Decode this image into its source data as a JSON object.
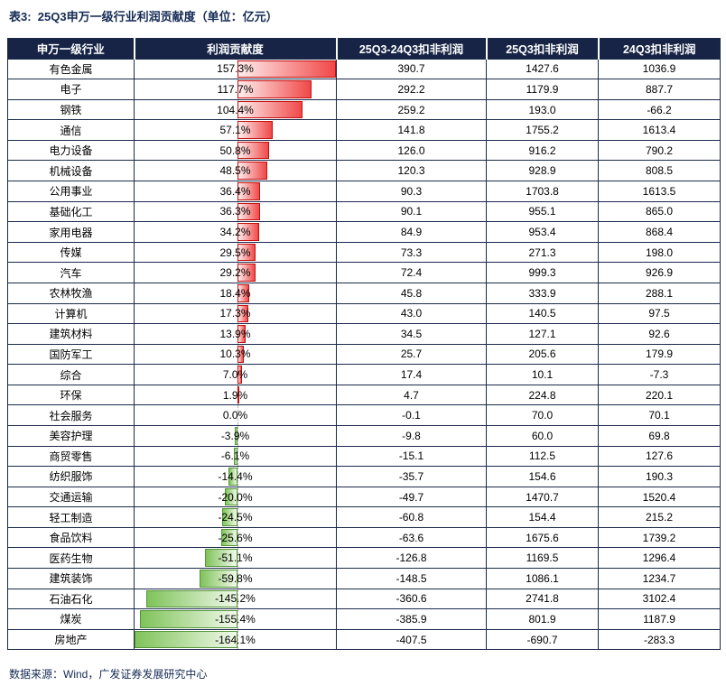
{
  "title": "表3:  25Q3申万一级行业利润贡献度（单位：亿元）",
  "footer": "数据来源：Wind，广发证券发展研究中心",
  "colors": {
    "header_bg": "#172445",
    "grid_line": "#1b2a4a",
    "accent_text": "#142a54",
    "positive_bar": "#f04848",
    "positive_bar_border": "#c40f0f",
    "negative_bar": "#7fc35a",
    "negative_bar_border": "#55953a"
  },
  "chart_data": {
    "type": "table",
    "title": "25Q3申万一级行业利润贡献度（单位：亿元）",
    "columns": [
      "申万一级行业",
      "利润贡献度",
      "25Q3-24Q3扣非利润",
      "25Q3扣非利润",
      "24Q3扣非利润"
    ],
    "bar_column": "利润贡献度",
    "bar_axis": {
      "min": -164.1,
      "max": 157.3,
      "unit": "%"
    },
    "legend": "red bars = positive contribution, green bars = negative contribution",
    "rows": [
      {
        "industry": "有色金属",
        "contribution_pct": 157.3,
        "profit_diff": 390.7,
        "profit_25q3": 1427.6,
        "profit_24q3": 1036.9
      },
      {
        "industry": "电子",
        "contribution_pct": 117.7,
        "profit_diff": 292.2,
        "profit_25q3": 1179.9,
        "profit_24q3": 887.7
      },
      {
        "industry": "钢铁",
        "contribution_pct": 104.4,
        "profit_diff": 259.2,
        "profit_25q3": 193.0,
        "profit_24q3": -66.2
      },
      {
        "industry": "通信",
        "contribution_pct": 57.1,
        "profit_diff": 141.8,
        "profit_25q3": 1755.2,
        "profit_24q3": 1613.4
      },
      {
        "industry": "电力设备",
        "contribution_pct": 50.8,
        "profit_diff": 126.0,
        "profit_25q3": 916.2,
        "profit_24q3": 790.2
      },
      {
        "industry": "机械设备",
        "contribution_pct": 48.5,
        "profit_diff": 120.3,
        "profit_25q3": 928.9,
        "profit_24q3": 808.5
      },
      {
        "industry": "公用事业",
        "contribution_pct": 36.4,
        "profit_diff": 90.3,
        "profit_25q3": 1703.8,
        "profit_24q3": 1613.5
      },
      {
        "industry": "基础化工",
        "contribution_pct": 36.3,
        "profit_diff": 90.1,
        "profit_25q3": 955.1,
        "profit_24q3": 865.0
      },
      {
        "industry": "家用电器",
        "contribution_pct": 34.2,
        "profit_diff": 84.9,
        "profit_25q3": 953.4,
        "profit_24q3": 868.4
      },
      {
        "industry": "传媒",
        "contribution_pct": 29.5,
        "profit_diff": 73.3,
        "profit_25q3": 271.3,
        "profit_24q3": 198.0
      },
      {
        "industry": "汽车",
        "contribution_pct": 29.2,
        "profit_diff": 72.4,
        "profit_25q3": 999.3,
        "profit_24q3": 926.9
      },
      {
        "industry": "农林牧渔",
        "contribution_pct": 18.4,
        "profit_diff": 45.8,
        "profit_25q3": 333.9,
        "profit_24q3": 288.1
      },
      {
        "industry": "计算机",
        "contribution_pct": 17.3,
        "profit_diff": 43.0,
        "profit_25q3": 140.5,
        "profit_24q3": 97.5
      },
      {
        "industry": "建筑材料",
        "contribution_pct": 13.9,
        "profit_diff": 34.5,
        "profit_25q3": 127.1,
        "profit_24q3": 92.6
      },
      {
        "industry": "国防军工",
        "contribution_pct": 10.3,
        "profit_diff": 25.7,
        "profit_25q3": 205.6,
        "profit_24q3": 179.9
      },
      {
        "industry": "综合",
        "contribution_pct": 7.0,
        "profit_diff": 17.4,
        "profit_25q3": 10.1,
        "profit_24q3": -7.3
      },
      {
        "industry": "环保",
        "contribution_pct": 1.9,
        "profit_diff": 4.7,
        "profit_25q3": 224.8,
        "profit_24q3": 220.1
      },
      {
        "industry": "社会服务",
        "contribution_pct": 0.0,
        "profit_diff": -0.1,
        "profit_25q3": 70.0,
        "profit_24q3": 70.1
      },
      {
        "industry": "美容护理",
        "contribution_pct": -3.9,
        "profit_diff": -9.8,
        "profit_25q3": 60.0,
        "profit_24q3": 69.8
      },
      {
        "industry": "商贸零售",
        "contribution_pct": -6.1,
        "profit_diff": -15.1,
        "profit_25q3": 112.5,
        "profit_24q3": 127.6
      },
      {
        "industry": "纺织服饰",
        "contribution_pct": -14.4,
        "profit_diff": -35.7,
        "profit_25q3": 154.6,
        "profit_24q3": 190.3
      },
      {
        "industry": "交通运输",
        "contribution_pct": -20.0,
        "profit_diff": -49.7,
        "profit_25q3": 1470.7,
        "profit_24q3": 1520.4
      },
      {
        "industry": "轻工制造",
        "contribution_pct": -24.5,
        "profit_diff": -60.8,
        "profit_25q3": 154.4,
        "profit_24q3": 215.2
      },
      {
        "industry": "食品饮料",
        "contribution_pct": -25.6,
        "profit_diff": -63.6,
        "profit_25q3": 1675.6,
        "profit_24q3": 1739.2
      },
      {
        "industry": "医药生物",
        "contribution_pct": -51.1,
        "profit_diff": -126.8,
        "profit_25q3": 1169.5,
        "profit_24q3": 1296.4
      },
      {
        "industry": "建筑装饰",
        "contribution_pct": -59.8,
        "profit_diff": -148.5,
        "profit_25q3": 1086.1,
        "profit_24q3": 1234.7
      },
      {
        "industry": "石油石化",
        "contribution_pct": -145.2,
        "profit_diff": -360.6,
        "profit_25q3": 2741.8,
        "profit_24q3": 3102.4
      },
      {
        "industry": "煤炭",
        "contribution_pct": -155.4,
        "profit_diff": -385.9,
        "profit_25q3": 801.9,
        "profit_24q3": 1187.9
      },
      {
        "industry": "房地产",
        "contribution_pct": -164.1,
        "profit_diff": -407.5,
        "profit_25q3": -690.7,
        "profit_24q3": -283.3
      }
    ]
  }
}
